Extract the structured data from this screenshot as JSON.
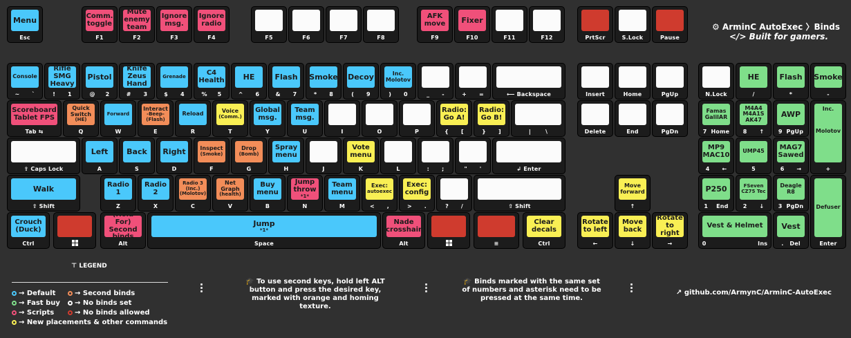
{
  "brand": {
    "title": "⚙ ArminC AutoExec 〉Binds",
    "tagline": "</> Built for gamers."
  },
  "keys": {
    "esc": {
      "cap": "Menu",
      "label": "Esc"
    },
    "f1": {
      "cap": "Comm. toggle",
      "label": "F1"
    },
    "f2": {
      "cap": "Mute enemy team",
      "label": "F2"
    },
    "f3": {
      "cap": "Ignore msg.",
      "label": "F3"
    },
    "f4": {
      "cap": "Ignore radio",
      "label": "F4"
    },
    "f5": {
      "cap": "",
      "label": "F5"
    },
    "f6": {
      "cap": "",
      "label": "F6"
    },
    "f7": {
      "cap": "",
      "label": "F7"
    },
    "f8": {
      "cap": "",
      "label": "F8"
    },
    "f9": {
      "cap": "AFK move",
      "label": "F9"
    },
    "f10": {
      "cap": "Fixer",
      "label": "F10"
    },
    "f11": {
      "cap": "",
      "label": "F11"
    },
    "f12": {
      "cap": "",
      "label": "F12"
    },
    "prtscr": {
      "cap": "",
      "label": "PrtScr"
    },
    "slock": {
      "cap": "",
      "label": "S.Lock"
    },
    "pause": {
      "cap": "",
      "label": "Pause"
    },
    "tilde": {
      "cap": "Console",
      "label": "~      `"
    },
    "n1": {
      "cap": "Rifle SMG Heavy",
      "label": "!      1"
    },
    "n2": {
      "cap": "Pistol",
      "label": "@     2"
    },
    "n3": {
      "cap": "Knife Zeus Hand",
      "label": "#      3"
    },
    "n4": {
      "cap": "Grenade",
      "label": "$      4"
    },
    "n5": {
      "cap": "C4 Health",
      "label": "%     5"
    },
    "n6": {
      "cap": "HE",
      "label": "^      6"
    },
    "n7": {
      "cap": "Flash",
      "label": "&      7"
    },
    "n8": {
      "cap": "Smoke",
      "label": "*      8"
    },
    "n9": {
      "cap": "Decoy",
      "label": "(      9"
    },
    "n0": {
      "cap": "Inc. Molotov",
      "label": ")      0"
    },
    "minus": {
      "cap": "",
      "label": "_      -"
    },
    "equal": {
      "cap": "",
      "label": "+      ="
    },
    "backspace": {
      "cap": "",
      "label": "⟵ Backspace"
    },
    "insert": {
      "cap": "",
      "label": "Insert"
    },
    "home": {
      "cap": "",
      "label": "Home"
    },
    "pgup": {
      "cap": "",
      "label": "PgUp"
    },
    "numlock": {
      "cap": "",
      "label": "N.Lock"
    },
    "npslash": {
      "cap": "HE",
      "label": "/"
    },
    "npstar": {
      "cap": "Flash",
      "label": "*"
    },
    "npminus": {
      "cap": "Smoke",
      "label": "-"
    },
    "tab": {
      "cap": "Scoreboard Tablet FPS",
      "label": "Tab ⇆"
    },
    "q": {
      "cap": "Quick Switch",
      "sub": "(HE)",
      "label": "Q"
    },
    "w": {
      "cap": "Forward",
      "label": "W"
    },
    "e": {
      "cap": "Interact",
      "sub1": "-Beep-",
      "sub": "(Flash)",
      "label": "E"
    },
    "r": {
      "cap": "Reload",
      "label": "R"
    },
    "t": {
      "cap": "Voice",
      "sub": "(Comm.)",
      "label": "T"
    },
    "y": {
      "cap": "Global msg.",
      "label": "Y"
    },
    "u": {
      "cap": "Team msg.",
      "label": "U"
    },
    "i": {
      "cap": "",
      "label": "I"
    },
    "o": {
      "cap": "",
      "label": "O"
    },
    "p": {
      "cap": "",
      "label": "P"
    },
    "lbracket": {
      "cap": "Radio: Go A!",
      "label": "{      ["
    },
    "rbracket": {
      "cap": "Radio: Go B!",
      "label": "}      ]"
    },
    "backslash": {
      "cap": "",
      "label": "|       \\"
    },
    "delete": {
      "cap": "",
      "label": "Delete"
    },
    "end": {
      "cap": "",
      "label": "End"
    },
    "pgdn": {
      "cap": "",
      "label": "PgDn"
    },
    "np7": {
      "cap": "Famas GalilAR",
      "label": "7  Home"
    },
    "np8": {
      "cap": "M4A4 M4A1S AK47",
      "label": "8      ↑"
    },
    "np9": {
      "cap": "AWP",
      "label": "9  PgUp"
    },
    "npplus": {
      "cap": "Inc.",
      "cap2": "Molotov",
      "label": "+"
    },
    "caps": {
      "cap": "",
      "label": "⇪ Caps Lock"
    },
    "a": {
      "cap": "Left",
      "label": "A"
    },
    "s": {
      "cap": "Back",
      "label": "S"
    },
    "d": {
      "cap": "Right",
      "label": "D"
    },
    "f": {
      "cap": "Inspect",
      "sub": "(Smoke)",
      "label": "F"
    },
    "g": {
      "cap": "Drop",
      "sub": "(Bomb)",
      "label": "G"
    },
    "h": {
      "cap": "Spray menu",
      "label": "H"
    },
    "j": {
      "cap": "",
      "label": "J"
    },
    "k": {
      "cap": "Vote menu",
      "label": "K"
    },
    "l": {
      "cap": "",
      "label": "L"
    },
    "semicolon": {
      "cap": "",
      "label": ":      ;"
    },
    "quote": {
      "cap": "",
      "label": "\"      '"
    },
    "enter": {
      "cap": "",
      "label": "↲ Enter"
    },
    "np4": {
      "cap": "MP9 MAC10",
      "label": "4      ←"
    },
    "np5": {
      "cap": "UMP45",
      "label": "5"
    },
    "np6": {
      "cap": "MAG7 Sawed",
      "label": "6      →"
    },
    "lshift": {
      "cap": "Walk",
      "label": "⇧ Shift"
    },
    "z": {
      "cap": "Radio 1",
      "label": "Z"
    },
    "x": {
      "cap": "Radio 2",
      "label": "X"
    },
    "c": {
      "cap": "Radio 3",
      "sub1": "(Inc.)",
      "sub": "(Molotov)",
      "label": "C"
    },
    "v": {
      "cap": "Net Graph",
      "sub": "(health)",
      "label": "V"
    },
    "b": {
      "cap": "Buy menu",
      "label": "B"
    },
    "n": {
      "cap": "Jump throw",
      "sub": "*1*",
      "label": "N"
    },
    "m": {
      "cap": "Team menu",
      "label": "M"
    },
    "comma": {
      "cap": "Exec:",
      "sub": "autoexec",
      "label": "<      ,"
    },
    "period": {
      "cap": "Exec: config",
      "label": ">      ."
    },
    "slash": {
      "cap": "",
      "label": "?      /"
    },
    "rshift": {
      "cap": "",
      "label": "⇧ Shift"
    },
    "up": {
      "cap": "Move forward",
      "label": "↑"
    },
    "np1": {
      "cap": "P250",
      "label": "1    End"
    },
    "np2": {
      "cap": "FSeven CZ75 Tec",
      "label": "2      ↓"
    },
    "np3": {
      "cap": "Deagle R8",
      "label": "3  PgDn"
    },
    "npenter": {
      "cap": "Defuser",
      "label": "Enter"
    },
    "lctrl": {
      "cap": "Crouch (Duck)",
      "label": "Ctrl"
    },
    "lwin": {
      "cap": "",
      "label": "win"
    },
    "lalt": {
      "cap": "(Hold For)",
      "cap2": "Second binds",
      "label": "Alt"
    },
    "space": {
      "cap": "Jump",
      "sub": "*1*",
      "label": "Space"
    },
    "ralt": {
      "cap": "Nade crosshair",
      "label": "Alt"
    },
    "rwin": {
      "cap": "",
      "label": "win"
    },
    "menu": {
      "cap": "",
      "label": "≡"
    },
    "rctrl": {
      "cap": "Clear decals",
      "label": "Ctrl"
    },
    "left": {
      "cap": "Rotate to left",
      "label": "←"
    },
    "down": {
      "cap": "Move back",
      "label": "↓"
    },
    "right": {
      "cap": "Rotate to right",
      "label": "→"
    },
    "np0": {
      "cap": "Vest & Helmet",
      "label": "0                         Ins"
    },
    "npdot": {
      "cap": "Vest",
      "label": ".   Del"
    }
  },
  "legend": {
    "title": "⊤ LEGEND",
    "items": [
      {
        "text": "→ Default",
        "color": "#4ac8fb"
      },
      {
        "text": "→ Fast buy",
        "color": "#7fde8a"
      },
      {
        "text": "→ Scripts",
        "color": "#f0507a"
      },
      {
        "text": "→ New placements & other commands",
        "color": "#f9ef54"
      },
      {
        "text": "→ Second binds",
        "color": "#f28d59"
      },
      {
        "text": "→ No binds set",
        "color": "#fbfbfb"
      },
      {
        "text": "→ No binds allowed",
        "color": "#cf3b2e"
      }
    ]
  },
  "notes": {
    "second_keys": "🎓 To use second keys, hold left ALT button and press the desired key, marked with orange and homing texture.",
    "same_numbers": "🎓 Binds marked with the same set of numbers and asterisk need to be pressed at the same time."
  },
  "github": "↗ github.com/ArmynC/ArminC-AutoExec",
  "colors": {
    "default": "#4ac8fb",
    "fast_buy": "#7fde8a",
    "scripts": "#f0507a",
    "new": "#f9ef54",
    "second": "#f28d59",
    "none": "#fbfbfb",
    "not_allowed": "#cf3b2e"
  }
}
